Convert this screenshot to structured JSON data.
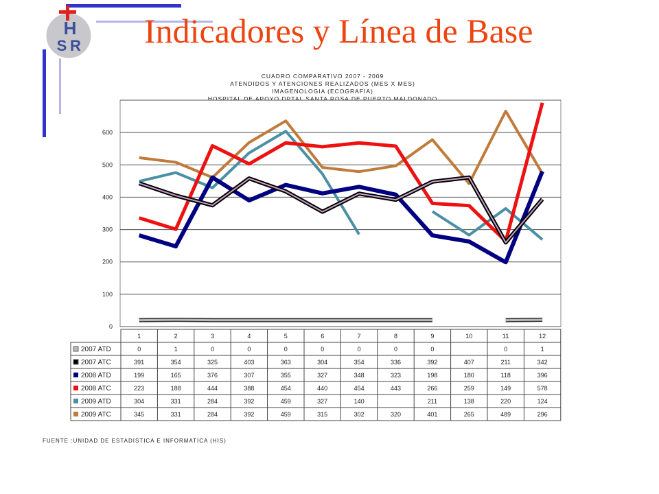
{
  "page": {
    "title": "Indicadores y Línea de Base",
    "logo_text_1": "H",
    "logo_text_2": "S",
    "logo_text_3": "R",
    "source_note": "FUENTE :UNIDAD DE ESTADISTICA E INFORMATICA (HIS)"
  },
  "colors": {
    "title": "#ee4411",
    "accent_blue": "#3333cc",
    "2007_ATD": "#b8b8b8",
    "2007_ATC": "#000000",
    "2008_ATD": "#000080",
    "2008_ATC": "#ee1111",
    "2009_ATD": "#4a90a4",
    "2009_ATC": "#c07a3a"
  },
  "chart_data": {
    "type": "line",
    "title": [
      "CUADRO COMPARATIVO 2007 - 2009",
      "ATENDIDOS Y ATENCIONES REALIZADOS (MES X MES)",
      "IMAGENOLOGIA (ECOGRAFIA)",
      "HOSPITAL DE APOYO DPTAL SANTA ROSA DE PUERTO MALDONADO"
    ],
    "ylim": [
      0,
      700
    ],
    "yticks": [
      "0",
      "100",
      "200",
      "300",
      "400",
      "500",
      "600"
    ],
    "categories": [
      "1",
      "2",
      "3",
      "4",
      "5",
      "6",
      "7",
      "8",
      "9",
      "10",
      "11",
      "12"
    ],
    "grid": true,
    "legend": "data-table",
    "series": [
      {
        "name": "2007 ATD",
        "values": [
          0,
          1,
          0,
          0,
          0,
          0,
          0,
          0,
          0,
          null,
          0,
          1
        ],
        "plot": [
          20,
          21,
          20,
          20,
          20,
          20,
          20,
          20,
          20,
          null,
          20,
          21
        ]
      },
      {
        "name": "2007 ATC",
        "values": [
          391,
          354,
          325,
          403,
          363,
          304,
          354,
          336,
          392,
          407,
          211,
          342
        ],
        "plot": [
          443,
          405,
          375,
          458,
          418,
          355,
          411,
          392,
          448,
          461,
          260,
          394
        ]
      },
      {
        "name": "2008 ATD",
        "values": [
          199,
          165,
          376,
          307,
          355,
          327,
          348,
          323,
          198,
          180,
          118,
          396
        ],
        "plot": [
          282,
          248,
          461,
          390,
          438,
          412,
          432,
          408,
          282,
          263,
          199,
          480
        ]
      },
      {
        "name": "2008 ATC",
        "values": [
          223,
          188,
          444,
          388,
          454,
          440,
          454,
          443,
          266,
          259,
          149,
          578
        ],
        "plot": [
          336,
          301,
          559,
          503,
          568,
          556,
          568,
          558,
          381,
          374,
          264,
          692
        ]
      },
      {
        "name": "2009 ATD",
        "values": [
          304,
          331,
          284,
          392,
          459,
          327,
          140,
          null,
          211,
          138,
          220,
          124
        ],
        "plot": [
          449,
          476,
          429,
          537,
          604,
          472,
          285,
          null,
          356,
          283,
          365,
          269
        ]
      },
      {
        "name": "2009 ATC",
        "values": [
          345,
          331,
          284,
          392,
          459,
          315,
          302,
          320,
          401,
          265,
          489,
          296
        ],
        "plot": [
          522,
          508,
          461,
          569,
          636,
          492,
          479,
          497,
          578,
          442,
          666,
          473
        ]
      }
    ],
    "table_values": [
      [
        "0",
        "1",
        "0",
        "0",
        "0",
        "0",
        "0",
        "0",
        "0",
        "",
        "0",
        "1"
      ],
      [
        "391",
        "354",
        "325",
        "403",
        "363",
        "304",
        "354",
        "336",
        "392",
        "407",
        "211",
        "342"
      ],
      [
        "199",
        "165",
        "376",
        "307",
        "355",
        "327",
        "348",
        "323",
        "198",
        "180",
        "118",
        "396"
      ],
      [
        "223",
        "188",
        "444",
        "388",
        "454",
        "440",
        "454",
        "443",
        "266",
        "259",
        "149",
        "578"
      ],
      [
        "304",
        "331",
        "284",
        "392",
        "459",
        "327",
        "140",
        "",
        "211",
        "138",
        "220",
        "124"
      ],
      [
        "345",
        "331",
        "284",
        "392",
        "459",
        "315",
        "302",
        "320",
        "401",
        "265",
        "489",
        "296"
      ]
    ]
  }
}
